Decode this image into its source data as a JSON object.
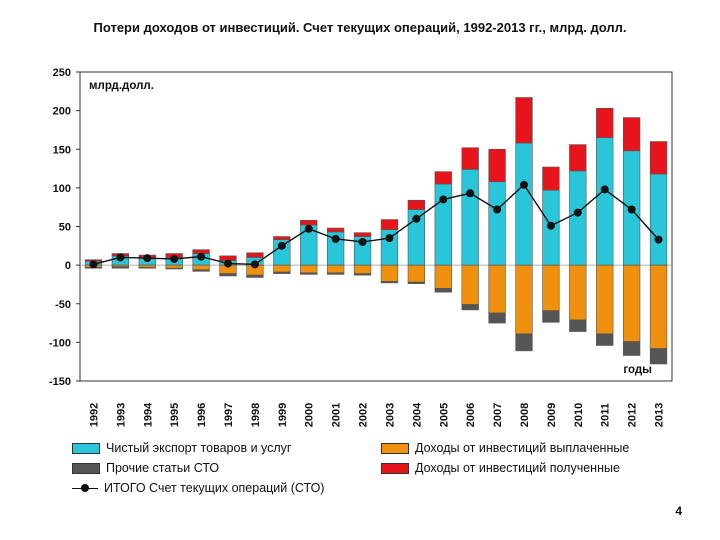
{
  "page": {
    "title": "Потери доходов от инвестиций. Счет текущих операций, 1992-2013 гг., млрд. долл.",
    "page_number": "4"
  },
  "chart_data": {
    "type": "bar",
    "title": "Потери доходов от инвестиций. Счет текущих операций, 1992-2013 гг., млрд. долл.",
    "ylabel": "млрд.долл.",
    "xlabel": "годы",
    "ylim": [
      -150,
      250
    ],
    "yticks": [
      "250",
      "200",
      "150",
      "100",
      "50",
      "0",
      "-50",
      "-100",
      "-150"
    ],
    "ytick_values": [
      250,
      200,
      150,
      100,
      50,
      0,
      -50,
      -100,
      -150
    ],
    "categories": [
      "1992",
      "1993",
      "1994",
      "1995",
      "1996",
      "1997",
      "1998",
      "1999",
      "2000",
      "2001",
      "2002",
      "2003",
      "2004",
      "2005",
      "2006",
      "2007",
      "2008",
      "2009",
      "2010",
      "2011",
      "2012",
      "2013"
    ],
    "series": [
      {
        "name": "Чистый экспорт товаров и услуг",
        "color": "#29c5d8",
        "stack": "pos",
        "values": [
          5,
          12,
          9,
          10,
          15,
          6,
          10,
          33,
          52,
          43,
          37,
          46,
          72,
          105,
          124,
          108,
          158,
          97,
          122,
          165,
          148,
          118
        ]
      },
      {
        "name": "Доходы от инвестиций полученные",
        "color": "#e8141b",
        "stack": "pos",
        "values": [
          2,
          3,
          4,
          5,
          5,
          6,
          6,
          4,
          6,
          5,
          5,
          13,
          12,
          16,
          28,
          42,
          59,
          30,
          34,
          38,
          43,
          42
        ]
      },
      {
        "name": "Доходы от инвестиций выплаченные",
        "color": "#f0900f",
        "stack": "neg",
        "values": [
          -3,
          -2,
          -3,
          -4,
          -6,
          -11,
          -13,
          -9,
          -10,
          -10,
          -11,
          -21,
          -22,
          -30,
          -51,
          -62,
          -89,
          -59,
          -71,
          -89,
          -99,
          -108
        ]
      },
      {
        "name": "Прочие статьи СТО",
        "color": "#555555",
        "stack": "neg",
        "values": [
          -1,
          -2,
          -1,
          -1,
          -2,
          -3,
          -3,
          -2,
          -2,
          -2,
          -2,
          -2,
          -2,
          -5,
          -7,
          -13,
          -22,
          -15,
          -15,
          -15,
          -18,
          -20
        ]
      }
    ],
    "line": {
      "name": "ИТОГО Счет текущих операций (СТО)",
      "color": "#111111",
      "values": [
        1,
        10,
        9,
        8,
        11,
        2,
        1,
        25,
        47,
        34,
        30,
        35,
        60,
        85,
        93,
        72,
        104,
        51,
        68,
        98,
        72,
        33
      ]
    },
    "legend": [
      {
        "label": "Чистый экспорт товаров и услуг",
        "color": "#29c5d8"
      },
      {
        "label": "Доходы от инвестиций выплаченные",
        "color": "#f0900f"
      },
      {
        "label": "Прочие статьи СТО",
        "color": "#555555"
      },
      {
        "label": "Доходы от инвестиций полученные",
        "color": "#e8141b"
      },
      {
        "label": "ИТОГО Счет текущих операций (СТО)",
        "color": "#111111"
      }
    ]
  }
}
